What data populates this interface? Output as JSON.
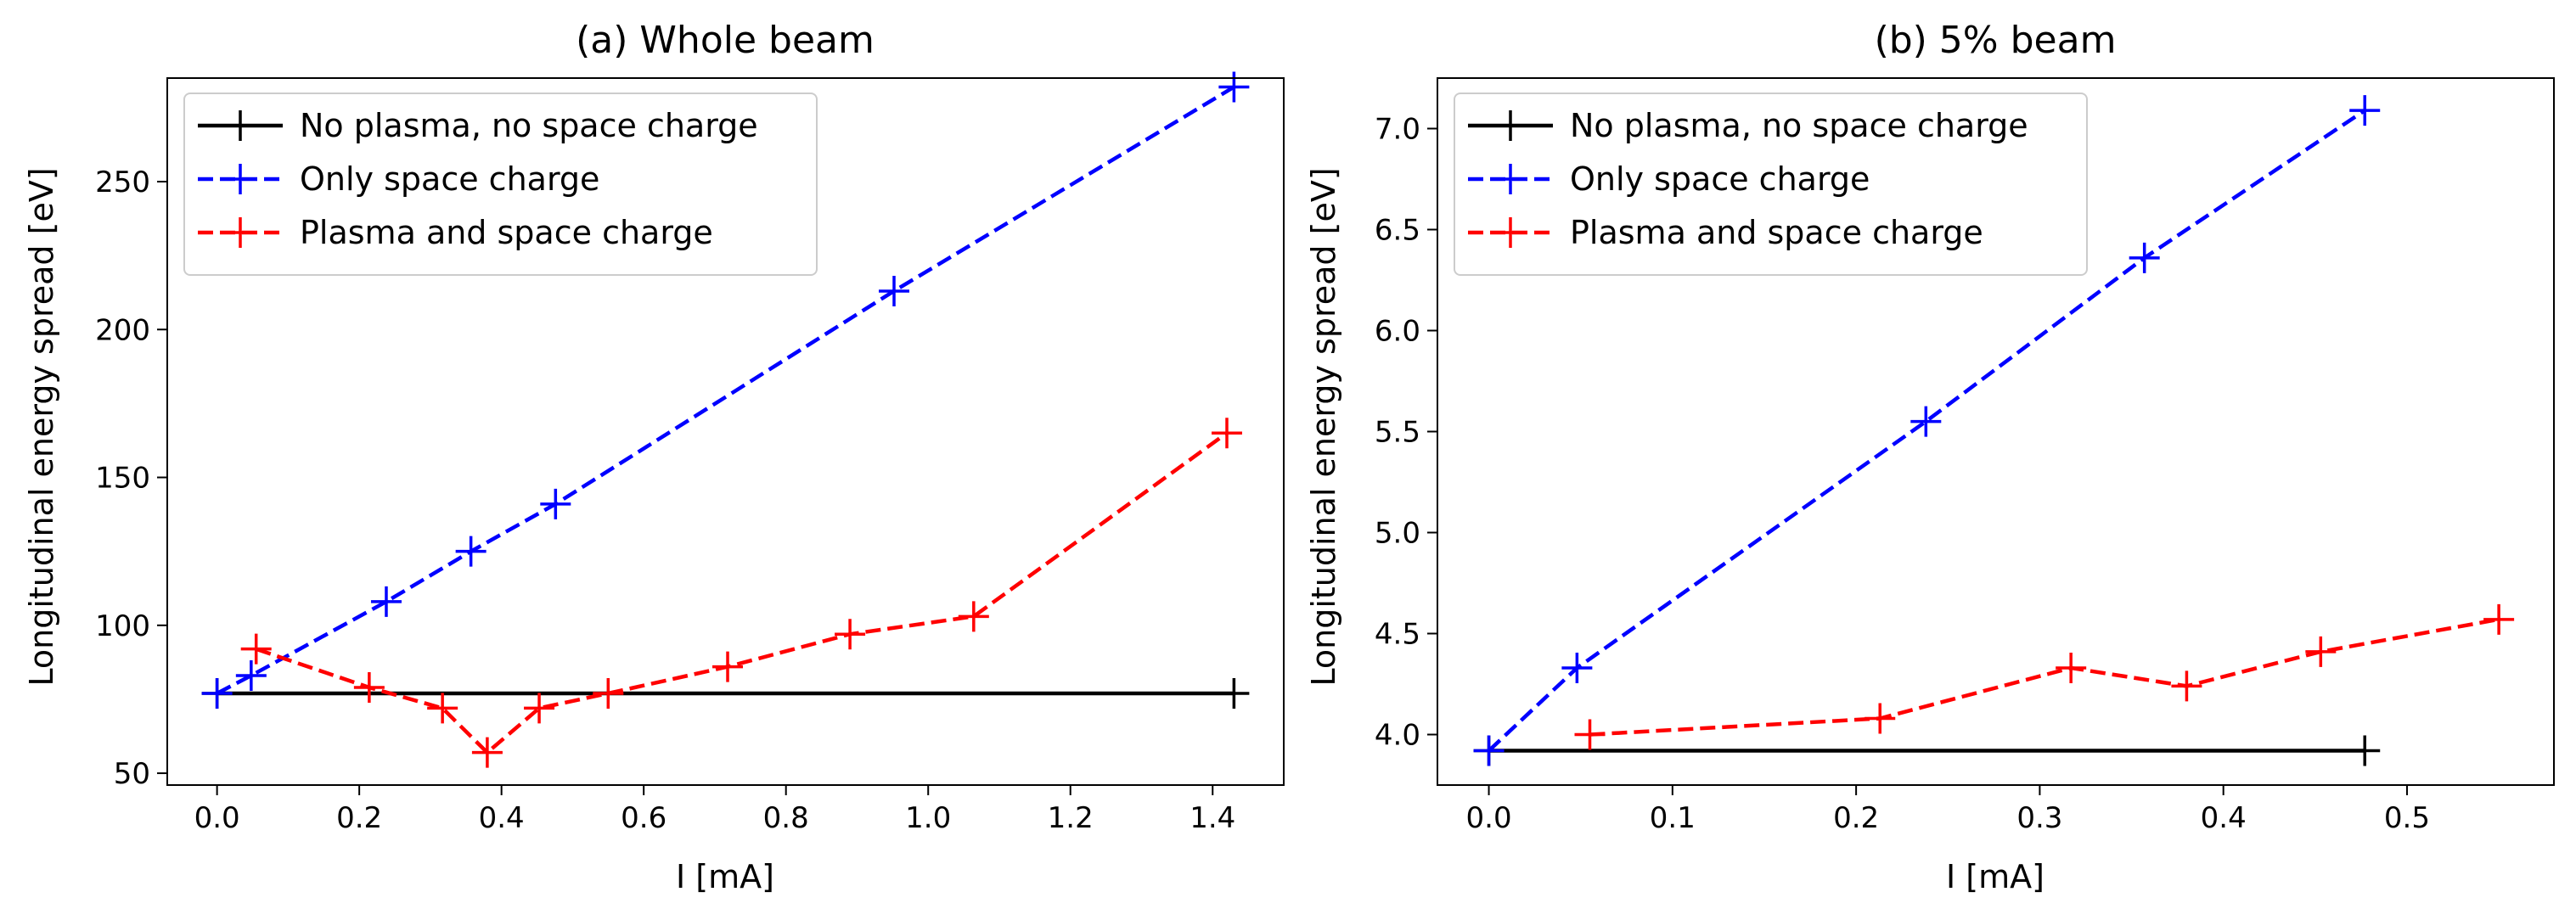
{
  "chart_data": [
    {
      "type": "line",
      "title": "(a) Whole beam",
      "xlabel": "I [mA]",
      "ylabel": "Longitudinal energy spread [eV]",
      "xlim": [
        -0.07,
        1.5
      ],
      "ylim": [
        46,
        285
      ],
      "xticks": [
        0.0,
        0.2,
        0.4,
        0.6,
        0.8,
        1.0,
        1.2,
        1.4
      ],
      "xtick_labels": [
        "0.0",
        "0.2",
        "0.4",
        "0.6",
        "0.8",
        "1.0",
        "1.2",
        "1.4"
      ],
      "yticks": [
        50,
        100,
        150,
        200,
        250
      ],
      "ytick_labels": [
        "50",
        "100",
        "150",
        "200",
        "250"
      ],
      "legend_position": "top-left",
      "series": [
        {
          "name": "No plasma, no space charge",
          "color": "#000000",
          "dash": "solid",
          "x": [
            0.0,
            1.43
          ],
          "y": [
            77,
            77
          ]
        },
        {
          "name": "Only space charge",
          "color": "#0000ff",
          "dash": "dashed",
          "x": [
            0.0,
            0.048,
            0.238,
            0.357,
            0.476,
            0.952,
            1.43
          ],
          "y": [
            77,
            83,
            108,
            125,
            141,
            213,
            282
          ]
        },
        {
          "name": "Plasma and space charge",
          "color": "#ff0000",
          "dash": "dashed",
          "x": [
            0.055,
            0.214,
            0.317,
            0.38,
            0.453,
            0.55,
            0.718,
            0.89,
            1.064,
            1.42
          ],
          "y": [
            92,
            79,
            72,
            57,
            72,
            77,
            86,
            97,
            103,
            165
          ]
        }
      ]
    },
    {
      "type": "line",
      "title": "(b) 5% beam",
      "xlabel": "I [mA]",
      "ylabel": "Longitudinal energy spread [eV]",
      "xlim": [
        -0.028,
        0.58
      ],
      "ylim": [
        3.75,
        7.25
      ],
      "xticks": [
        0.0,
        0.1,
        0.2,
        0.3,
        0.4,
        0.5
      ],
      "xtick_labels": [
        "0.0",
        "0.1",
        "0.2",
        "0.3",
        "0.4",
        "0.5"
      ],
      "yticks": [
        4.0,
        4.5,
        5.0,
        5.5,
        6.0,
        6.5,
        7.0
      ],
      "ytick_labels": [
        "4.0",
        "4.5",
        "5.0",
        "5.5",
        "6.0",
        "6.5",
        "7.0"
      ],
      "legend_position": "top-left",
      "series": [
        {
          "name": "No plasma, no space charge",
          "color": "#000000",
          "dash": "solid",
          "x": [
            0.0,
            0.477
          ],
          "y": [
            3.92,
            3.92
          ]
        },
        {
          "name": "Only space charge",
          "color": "#0000ff",
          "dash": "dashed",
          "x": [
            0.0,
            0.048,
            0.238,
            0.357,
            0.477
          ],
          "y": [
            3.92,
            4.33,
            5.55,
            6.36,
            7.09
          ]
        },
        {
          "name": "Plasma and space charge",
          "color": "#ff0000",
          "dash": "dashed",
          "x": [
            0.055,
            0.213,
            0.317,
            0.38,
            0.453,
            0.55
          ],
          "y": [
            4.0,
            4.08,
            4.33,
            4.24,
            4.41,
            4.57
          ]
        }
      ]
    }
  ]
}
